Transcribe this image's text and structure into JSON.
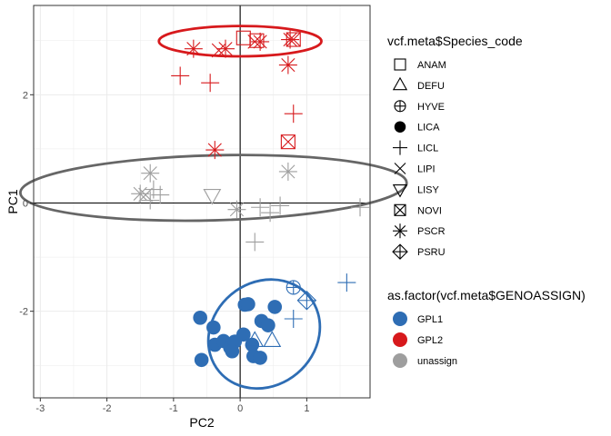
{
  "chart_data": {
    "type": "scatter",
    "xlabel": "PC2",
    "ylabel": "PC1",
    "xlim": [
      -3.1,
      1.95
    ],
    "ylim": [
      -3.6,
      3.65
    ],
    "x_ticks": [
      -3,
      -2,
      -1,
      0,
      1
    ],
    "x_tick_labels": [
      "-3",
      "-2",
      "-1",
      "0",
      "1"
    ],
    "y_ticks": [
      -2,
      0,
      2
    ],
    "y_tick_labels": [
      "-2",
      "0",
      "2"
    ],
    "grid": true,
    "reference_lines": {
      "x": 0,
      "y": 0
    },
    "colors": {
      "GPL1": "#2e6db4",
      "GPL2": "#d7191c",
      "unassign": "#9e9e9e",
      "ellipse_unassign": "#666666"
    },
    "legend_position": "right",
    "shape_legend": {
      "title": "vcf.meta$Species_code",
      "items": [
        {
          "label": "ANAM",
          "shape": "square-open"
        },
        {
          "label": "DEFU",
          "shape": "triangle-up-open"
        },
        {
          "label": "HYVE",
          "shape": "circle-plus"
        },
        {
          "label": "LICA",
          "shape": "circle-filled"
        },
        {
          "label": "LICL",
          "shape": "plus"
        },
        {
          "label": "LIPI",
          "shape": "cross"
        },
        {
          "label": "LISY",
          "shape": "triangle-down-open"
        },
        {
          "label": "NOVI",
          "shape": "square-cross"
        },
        {
          "label": "PSCR",
          "shape": "asterisk"
        },
        {
          "label": "PSRU",
          "shape": "diamond-plus"
        }
      ]
    },
    "color_legend": {
      "title": "as.factor(vcf.meta$GENOASSIGN)",
      "items": [
        {
          "label": "GPL1",
          "color": "#2e6db4"
        },
        {
          "label": "GPL2",
          "color": "#d7191c"
        },
        {
          "label": "unassign",
          "color": "#9e9e9e"
        }
      ]
    },
    "ellipses": [
      {
        "group": "GPL2",
        "cx": 0.0,
        "cy": 2.99,
        "rx": 1.22,
        "ry": 0.28,
        "angle_deg": 0
      },
      {
        "group": "unassign",
        "cx": -0.4,
        "cy": 0.28,
        "rx": 2.9,
        "ry": 0.6,
        "angle_deg": -1.5
      },
      {
        "group": "GPL1",
        "cx": 0.36,
        "cy": -2.42,
        "rx": 0.88,
        "ry": 0.95,
        "angle_deg": -40
      }
    ],
    "series": [
      {
        "name": "GPL1",
        "points": [
          {
            "x": -0.6,
            "y": -2.12,
            "shape": "circle-filled"
          },
          {
            "x": -0.4,
            "y": -2.3,
            "shape": "circle-filled"
          },
          {
            "x": -0.38,
            "y": -2.62,
            "shape": "circle-filled"
          },
          {
            "x": -0.25,
            "y": -2.55,
            "shape": "circle-filled"
          },
          {
            "x": -0.15,
            "y": -2.67,
            "shape": "circle-filled"
          },
          {
            "x": -0.08,
            "y": -2.56,
            "shape": "circle-filled"
          },
          {
            "x": -0.12,
            "y": -2.74,
            "shape": "circle-filled"
          },
          {
            "x": 0.05,
            "y": -2.43,
            "shape": "circle-filled"
          },
          {
            "x": 0.07,
            "y": -1.88,
            "shape": "circle-filled"
          },
          {
            "x": 0.12,
            "y": -1.87,
            "shape": "circle-filled"
          },
          {
            "x": 0.18,
            "y": -2.62,
            "shape": "circle-filled"
          },
          {
            "x": 0.2,
            "y": -2.83,
            "shape": "circle-filled"
          },
          {
            "x": 0.3,
            "y": -2.86,
            "shape": "circle-filled"
          },
          {
            "x": 0.32,
            "y": -2.18,
            "shape": "circle-filled"
          },
          {
            "x": 0.42,
            "y": -2.26,
            "shape": "circle-filled"
          },
          {
            "x": 0.52,
            "y": -1.92,
            "shape": "circle-filled"
          },
          {
            "x": -0.58,
            "y": -2.9,
            "shape": "circle-filled"
          },
          {
            "x": 0.22,
            "y": -2.55,
            "shape": "triangle-up-open"
          },
          {
            "x": 0.48,
            "y": -2.55,
            "shape": "triangle-up-open"
          },
          {
            "x": 0.8,
            "y": -2.14,
            "shape": "plus"
          },
          {
            "x": 1.6,
            "y": -1.47,
            "shape": "plus"
          },
          {
            "x": 0.8,
            "y": -1.56,
            "shape": "circle-plus"
          },
          {
            "x": 1.0,
            "y": -1.8,
            "shape": "diamond-plus"
          }
        ]
      },
      {
        "name": "GPL2",
        "points": [
          {
            "x": 0.05,
            "y": 3.05,
            "shape": "square-open"
          },
          {
            "x": 0.25,
            "y": 3.0,
            "shape": "square-open"
          },
          {
            "x": -0.7,
            "y": 2.85,
            "shape": "asterisk"
          },
          {
            "x": -0.32,
            "y": 2.82,
            "shape": "cross"
          },
          {
            "x": -0.22,
            "y": 2.85,
            "shape": "asterisk"
          },
          {
            "x": 0.22,
            "y": 2.98,
            "shape": "cross"
          },
          {
            "x": 0.3,
            "y": 2.98,
            "shape": "asterisk"
          },
          {
            "x": 0.75,
            "y": 3.02,
            "shape": "asterisk"
          },
          {
            "x": 0.8,
            "y": 3.02,
            "shape": "square-cross"
          },
          {
            "x": 0.72,
            "y": 2.55,
            "shape": "asterisk"
          },
          {
            "x": -0.9,
            "y": 2.35,
            "shape": "plus"
          },
          {
            "x": -0.45,
            "y": 2.22,
            "shape": "plus"
          },
          {
            "x": 0.8,
            "y": 1.65,
            "shape": "plus"
          },
          {
            "x": 0.72,
            "y": 1.13,
            "shape": "square-cross"
          },
          {
            "x": -0.38,
            "y": 0.98,
            "shape": "asterisk"
          }
        ]
      },
      {
        "name": "unassign",
        "points": [
          {
            "x": -1.35,
            "y": 0.55,
            "shape": "asterisk"
          },
          {
            "x": -1.5,
            "y": 0.17,
            "shape": "asterisk"
          },
          {
            "x": -1.42,
            "y": 0.15,
            "shape": "cross"
          },
          {
            "x": -1.3,
            "y": 0.25,
            "shape": "plus"
          },
          {
            "x": -1.2,
            "y": 0.15,
            "shape": "plus"
          },
          {
            "x": -1.35,
            "y": 0.05,
            "shape": "plus"
          },
          {
            "x": -0.42,
            "y": 0.15,
            "shape": "triangle-down-open"
          },
          {
            "x": -0.05,
            "y": -0.12,
            "shape": "asterisk"
          },
          {
            "x": 0.3,
            "y": -0.08,
            "shape": "plus"
          },
          {
            "x": 0.45,
            "y": -0.18,
            "shape": "plus"
          },
          {
            "x": 0.6,
            "y": -0.05,
            "shape": "plus"
          },
          {
            "x": 0.72,
            "y": 0.58,
            "shape": "asterisk"
          },
          {
            "x": 0.22,
            "y": -0.72,
            "shape": "plus"
          },
          {
            "x": 1.8,
            "y": -0.08,
            "shape": "plus"
          }
        ]
      }
    ]
  }
}
